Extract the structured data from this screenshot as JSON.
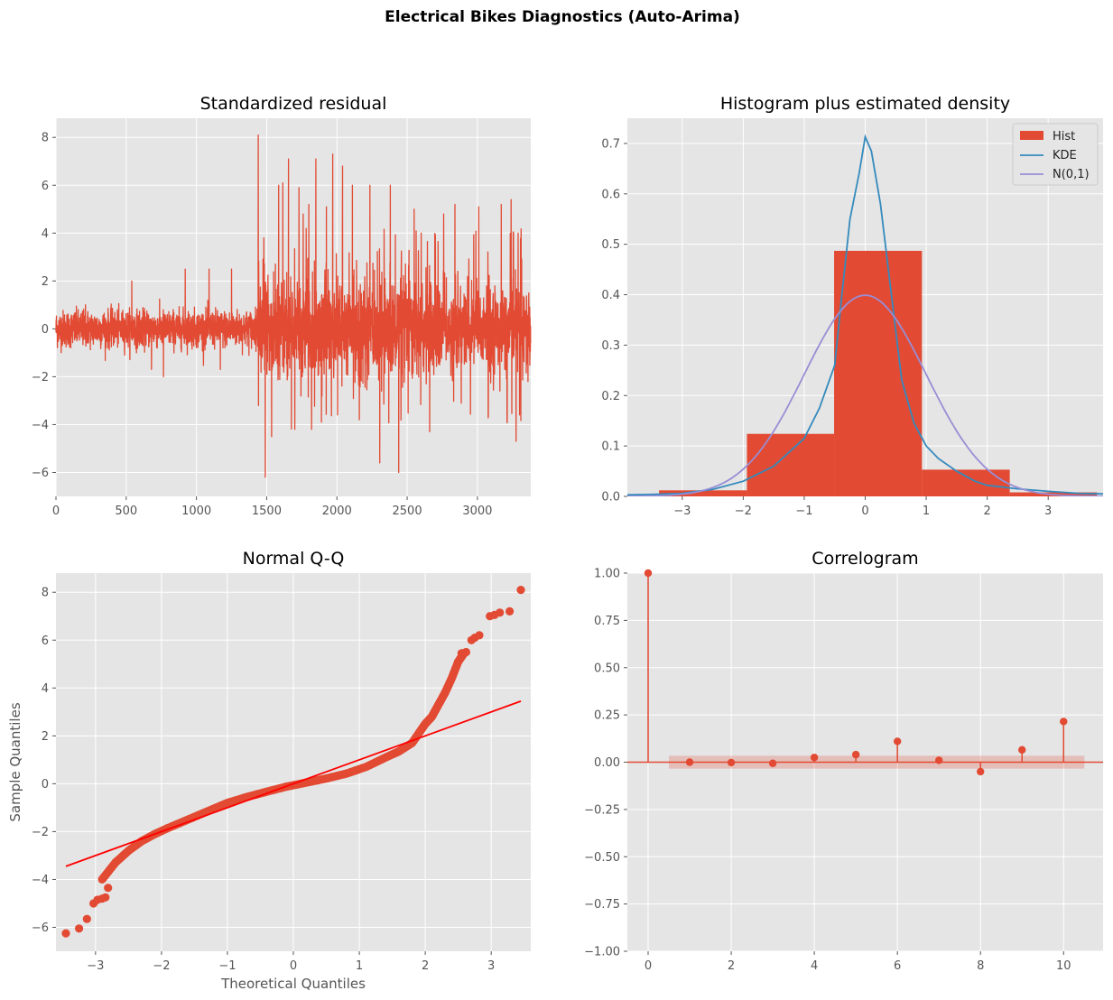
{
  "figure": {
    "suptitle": "Electrical Bikes Diagnostics (Auto-Arima)"
  },
  "colors": {
    "red": "#E24A33",
    "blue": "#348ABD",
    "purple": "#988ED5",
    "line_red": "#FF0000",
    "axes_bg": "#E5E5E5",
    "grid": "#FFFFFF"
  },
  "chart_data": [
    {
      "id": "residual",
      "type": "line",
      "title": "Standardized residual",
      "xlabel": "",
      "ylabel": "",
      "xlim": [
        0,
        3380
      ],
      "ylim": [
        -7,
        8.8
      ],
      "xticks": [
        0,
        500,
        1000,
        1500,
        2000,
        2500,
        3000
      ],
      "yticks": [
        -6,
        -4,
        -2,
        0,
        2,
        4,
        6,
        8
      ],
      "n_points": 3380,
      "grid": true,
      "peaks": [
        {
          "x": 1440,
          "y": 8.1
        },
        {
          "x": 1490,
          "y": -6.2
        },
        {
          "x": 1480,
          "y": 3.8
        },
        {
          "x": 1535,
          "y": -4.5
        },
        {
          "x": 1585,
          "y": 6.0
        },
        {
          "x": 1615,
          "y": 6.1
        },
        {
          "x": 1655,
          "y": 7.1
        },
        {
          "x": 1700,
          "y": -4.2
        },
        {
          "x": 1730,
          "y": 5.9
        },
        {
          "x": 1760,
          "y": 4.8
        },
        {
          "x": 1800,
          "y": 5.2
        },
        {
          "x": 1820,
          "y": -4.2
        },
        {
          "x": 1850,
          "y": 7.1
        },
        {
          "x": 1890,
          "y": -3.9
        },
        {
          "x": 1925,
          "y": 5.1
        },
        {
          "x": 1970,
          "y": 7.3
        },
        {
          "x": 2005,
          "y": -3.6
        },
        {
          "x": 2040,
          "y": 6.8
        },
        {
          "x": 2110,
          "y": 6.0
        },
        {
          "x": 2160,
          "y": -3.8
        },
        {
          "x": 2235,
          "y": 6.0
        },
        {
          "x": 2305,
          "y": -5.6
        },
        {
          "x": 2380,
          "y": 6.0
        },
        {
          "x": 2440,
          "y": -6.0
        },
        {
          "x": 2550,
          "y": 5.0
        },
        {
          "x": 2600,
          "y": 4.0
        },
        {
          "x": 2660,
          "y": -4.3
        },
        {
          "x": 2760,
          "y": 4.8
        },
        {
          "x": 2840,
          "y": 5.2
        },
        {
          "x": 3010,
          "y": 5.1
        },
        {
          "x": 3170,
          "y": 5.2
        },
        {
          "x": 3240,
          "y": 5.4
        },
        {
          "x": 3275,
          "y": -4.7
        },
        {
          "x": 3290,
          "y": 4.0
        },
        {
          "x": 3300,
          "y": -3.6
        },
        {
          "x": 3360,
          "y": -2.2
        },
        {
          "x": 210,
          "y": 1.0
        },
        {
          "x": 540,
          "y": 2.0
        },
        {
          "x": 680,
          "y": -1.7
        },
        {
          "x": 765,
          "y": -2.0
        },
        {
          "x": 920,
          "y": 2.5
        },
        {
          "x": 1090,
          "y": 2.5
        },
        {
          "x": 1170,
          "y": -1.7
        },
        {
          "x": 1250,
          "y": 2.5
        }
      ]
    },
    {
      "id": "histogram",
      "type": "bar",
      "title": "Histogram plus estimated density",
      "xlim": [
        -3.9,
        3.9
      ],
      "ylim": [
        0,
        0.75
      ],
      "xticks": [
        -3,
        -2,
        -1,
        0,
        1,
        2,
        3
      ],
      "xticklabels": [
        "−3",
        "−2",
        "−1",
        "0",
        "1",
        "2",
        "3"
      ],
      "yticks": [
        0.0,
        0.1,
        0.2,
        0.3,
        0.4,
        0.5,
        0.6,
        0.7
      ],
      "yticklabels": [
        "0.0",
        "0.1",
        "0.2",
        "0.3",
        "0.4",
        "0.5",
        "0.6",
        "0.7"
      ],
      "grid": true,
      "legend_position": "top-right",
      "bins": [
        {
          "x0": -3.38,
          "x1": -1.94,
          "value": 0.012
        },
        {
          "x0": -1.94,
          "x1": -0.51,
          "value": 0.124
        },
        {
          "x0": -0.51,
          "x1": 0.93,
          "value": 0.487
        },
        {
          "x0": 0.93,
          "x1": 2.37,
          "value": 0.053
        },
        {
          "x0": 2.37,
          "x1": 3.8,
          "value": 0.008
        }
      ],
      "series": [
        {
          "name": "Hist",
          "kind": "bars"
        },
        {
          "name": "KDE",
          "kind": "line",
          "x": [
            -3.9,
            -3.5,
            -3.0,
            -2.5,
            -2.0,
            -1.5,
            -1.0,
            -0.75,
            -0.5,
            -0.4,
            -0.25,
            -0.1,
            0.0,
            0.1,
            0.25,
            0.4,
            0.6,
            0.8,
            1.0,
            1.2,
            1.5,
            1.8,
            2.0,
            2.5,
            3.0,
            3.5,
            3.9
          ],
          "y": [
            0.003,
            0.004,
            0.006,
            0.014,
            0.03,
            0.06,
            0.115,
            0.175,
            0.26,
            0.38,
            0.55,
            0.64,
            0.713,
            0.685,
            0.58,
            0.43,
            0.23,
            0.145,
            0.1,
            0.075,
            0.05,
            0.03,
            0.022,
            0.015,
            0.01,
            0.006,
            0.005
          ]
        },
        {
          "name": "N(0,1)",
          "kind": "line"
        }
      ]
    },
    {
      "id": "qq",
      "type": "scatter",
      "title": "Normal Q-Q",
      "xlabel": "Theoretical Quantiles",
      "ylabel": "Sample Quantiles",
      "xlim": [
        -3.6,
        3.6
      ],
      "ylim": [
        -7,
        8.8
      ],
      "xticks": [
        -3,
        -2,
        -1,
        0,
        1,
        2,
        3
      ],
      "xticklabels": [
        "−3",
        "−2",
        "−1",
        "0",
        "1",
        "2",
        "3"
      ],
      "yticks": [
        -6,
        -4,
        -2,
        0,
        2,
        4,
        6,
        8
      ],
      "yticklabels": [
        "−6",
        "−4",
        "−2",
        "0",
        "2",
        "4",
        "6",
        "8"
      ],
      "grid": true,
      "reference_line": {
        "x": [
          -3.45,
          3.45
        ],
        "y": [
          -3.45,
          3.45
        ]
      },
      "curve": {
        "x": [
          -2.9,
          -2.7,
          -2.5,
          -2.3,
          -2.1,
          -1.9,
          -1.6,
          -1.3,
          -1.0,
          -0.7,
          -0.4,
          -0.1,
          0.2,
          0.5,
          0.8,
          1.1,
          1.4,
          1.6,
          1.8,
          1.9,
          2.0,
          2.1,
          2.2,
          2.3,
          2.4,
          2.5,
          2.6
        ],
        "y": [
          -4.0,
          -3.3,
          -2.8,
          -2.4,
          -2.1,
          -1.85,
          -1.5,
          -1.15,
          -0.8,
          -0.55,
          -0.33,
          -0.12,
          0.05,
          0.22,
          0.42,
          0.7,
          1.1,
          1.35,
          1.7,
          2.1,
          2.5,
          2.8,
          3.3,
          3.8,
          4.4,
          5.1,
          5.5
        ]
      },
      "tail_points": [
        {
          "x": -3.45,
          "y": -6.25
        },
        {
          "x": -3.25,
          "y": -6.05
        },
        {
          "x": -3.13,
          "y": -5.65
        },
        {
          "x": -3.03,
          "y": -5.0
        },
        {
          "x": -2.97,
          "y": -4.85
        },
        {
          "x": -2.9,
          "y": -4.8
        },
        {
          "x": -2.85,
          "y": -4.75
        },
        {
          "x": -2.81,
          "y": -4.35
        },
        {
          "x": 2.55,
          "y": 5.45
        },
        {
          "x": 2.62,
          "y": 5.5
        },
        {
          "x": 2.7,
          "y": 6.0
        },
        {
          "x": 2.75,
          "y": 6.1
        },
        {
          "x": 2.82,
          "y": 6.2
        },
        {
          "x": 2.98,
          "y": 7.0
        },
        {
          "x": 3.05,
          "y": 7.05
        },
        {
          "x": 3.13,
          "y": 7.15
        },
        {
          "x": 3.28,
          "y": 7.2
        },
        {
          "x": 3.45,
          "y": 8.1
        }
      ]
    },
    {
      "id": "correlogram",
      "type": "bar",
      "title": "Correlogram",
      "xlim": [
        -0.5,
        10.95
      ],
      "ylim": [
        -1.0,
        1.0
      ],
      "xticks": [
        0,
        2,
        4,
        6,
        8,
        10
      ],
      "yticks": [
        -1.0,
        -0.75,
        -0.5,
        -0.25,
        0.0,
        0.25,
        0.5,
        0.75,
        1.0
      ],
      "yticklabels": [
        "−1.00",
        "−0.75",
        "−0.50",
        "−0.25",
        "0.00",
        "0.25",
        "0.50",
        "0.75",
        "1.00"
      ],
      "grid": true,
      "confidence_band": 0.034,
      "band_xrange": [
        0.5,
        10.5
      ],
      "lags": [
        0,
        1,
        2,
        3,
        4,
        5,
        6,
        7,
        8,
        9,
        10
      ],
      "values": [
        1.0,
        0.0,
        -0.002,
        -0.006,
        0.025,
        0.04,
        0.11,
        0.01,
        -0.05,
        0.065,
        0.215
      ]
    }
  ]
}
